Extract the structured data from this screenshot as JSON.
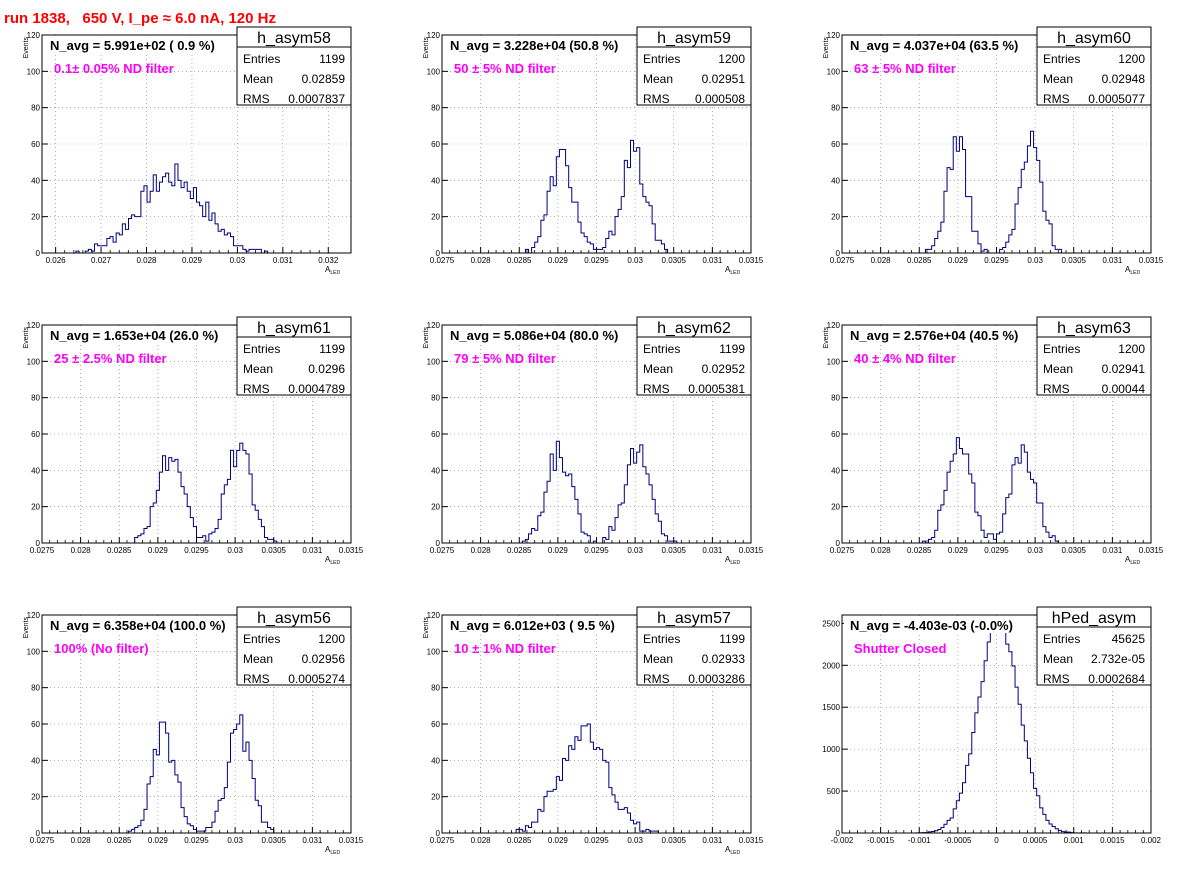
{
  "header": {
    "run_title": "run 1838,   650 V, I_pe ≈ 6.0 nA, 120 Hz"
  },
  "colors": {
    "hist_line": "#000080",
    "annotation": "#ff00ff",
    "title": "#ff0000",
    "grid": "#808080"
  },
  "chart_data": [
    {
      "type": "histogram",
      "name": "h_asym58",
      "navg": "N_avg = 5.991e+02 ( 0.9 %)",
      "filter": "0.1± 0.05% ND filter",
      "stats": {
        "entries": "1199",
        "mean": "0.02859",
        "rms": "0.0007837"
      },
      "xlabel": "A_LED",
      "ylabel": "Events",
      "xlim": [
        0.0257,
        0.0325
      ],
      "ylim": [
        0,
        120
      ],
      "xticks": [
        0.026,
        0.027,
        0.028,
        0.029,
        0.03,
        0.031,
        0.032
      ],
      "xtick_labels": [
        "0.026",
        "0.027",
        "0.028",
        "0.029",
        "0.03",
        "0.031",
        "0.032"
      ],
      "yticks": [
        0,
        20,
        40,
        60,
        80,
        100,
        120
      ],
      "ytick_labels": [
        "0",
        "20",
        "40",
        "60",
        "80",
        "100",
        "120"
      ],
      "peaks": [
        {
          "mu": 0.02855,
          "sigma": 0.00072,
          "amp": 42
        }
      ]
    },
    {
      "type": "histogram",
      "name": "h_asym59",
      "navg": "N_avg = 3.228e+04 (50.8 %)",
      "filter": "50 ± 5% ND filter",
      "stats": {
        "entries": "1200",
        "mean": "0.02951",
        "rms": "0.000508"
      },
      "xlabel": "A_LED",
      "ylabel": "Events",
      "xlim": [
        0.0275,
        0.0315
      ],
      "ylim": [
        0,
        120
      ],
      "xticks": [
        0.0275,
        0.028,
        0.0285,
        0.029,
        0.0295,
        0.03,
        0.0305,
        0.031,
        0.0315
      ],
      "xtick_labels": [
        "0.0275",
        "0.028",
        "0.0285",
        "0.029",
        "0.0295",
        "0.03",
        "0.0305",
        "0.031",
        "0.0315"
      ],
      "yticks": [
        0,
        20,
        40,
        60,
        80,
        100,
        120
      ],
      "ytick_labels": [
        "0",
        "20",
        "40",
        "60",
        "80",
        "100",
        "120"
      ],
      "peaks": [
        {
          "mu": 0.02905,
          "sigma": 0.00016,
          "amp": 52
        },
        {
          "mu": 0.02998,
          "sigma": 0.00016,
          "amp": 54
        }
      ]
    },
    {
      "type": "histogram",
      "name": "h_asym60",
      "navg": "N_avg = 4.037e+04 (63.5 %)",
      "filter": "63 ± 5% ND filter",
      "stats": {
        "entries": "1200",
        "mean": "0.02948",
        "rms": "0.0005077"
      },
      "xlabel": "A_LED",
      "ylabel": "Events",
      "xlim": [
        0.0275,
        0.0315
      ],
      "ylim": [
        0,
        120
      ],
      "xticks": [
        0.0275,
        0.028,
        0.0285,
        0.029,
        0.0295,
        0.03,
        0.0305,
        0.031,
        0.0315
      ],
      "xtick_labels": [
        "0.0275",
        "0.028",
        "0.0285",
        "0.029",
        "0.0295",
        "0.03",
        "0.0305",
        "0.031",
        "0.0315"
      ],
      "yticks": [
        0,
        20,
        40,
        60,
        80,
        100,
        120
      ],
      "ytick_labels": [
        "0",
        "20",
        "40",
        "60",
        "80",
        "100",
        "120"
      ],
      "peaks": [
        {
          "mu": 0.02899,
          "sigma": 0.00013,
          "amp": 62
        },
        {
          "mu": 0.02995,
          "sigma": 0.00014,
          "amp": 60
        }
      ]
    },
    {
      "type": "histogram",
      "name": "h_asym61",
      "navg": "N_avg = 1.653e+04 (26.0 %)",
      "filter": "25 ± 2.5% ND filter",
      "stats": {
        "entries": "1199",
        "mean": "0.0296",
        "rms": "0.0004789"
      },
      "xlabel": "A_LED",
      "ylabel": "Events",
      "xlim": [
        0.0275,
        0.0315
      ],
      "ylim": [
        0,
        120
      ],
      "xticks": [
        0.0275,
        0.028,
        0.0285,
        0.029,
        0.0295,
        0.03,
        0.0305,
        0.031,
        0.0315
      ],
      "xtick_labels": [
        "0.0275",
        "0.028",
        "0.0285",
        "0.029",
        "0.0295",
        "0.03",
        "0.0305",
        "0.031",
        "0.0315"
      ],
      "yticks": [
        0,
        20,
        40,
        60,
        80,
        100,
        120
      ],
      "ytick_labels": [
        "0",
        "20",
        "40",
        "60",
        "80",
        "100",
        "120"
      ],
      "peaks": [
        {
          "mu": 0.02915,
          "sigma": 0.00017,
          "amp": 46
        },
        {
          "mu": 0.03005,
          "sigma": 0.00016,
          "amp": 52
        }
      ]
    },
    {
      "type": "histogram",
      "name": "h_asym62",
      "navg": "N_avg = 5.086e+04 (80.0 %)",
      "filter": "79 ± 5% ND filter",
      "stats": {
        "entries": "1199",
        "mean": "0.02952",
        "rms": "0.0005381"
      },
      "xlabel": "A_LED",
      "ylabel": "Events",
      "xlim": [
        0.0275,
        0.0315
      ],
      "ylim": [
        0,
        120
      ],
      "xticks": [
        0.0275,
        0.028,
        0.0285,
        0.029,
        0.0295,
        0.03,
        0.0305,
        0.031,
        0.0315
      ],
      "xtick_labels": [
        "0.0275",
        "0.028",
        "0.0285",
        "0.029",
        "0.0295",
        "0.03",
        "0.0305",
        "0.031",
        "0.0315"
      ],
      "yticks": [
        0,
        20,
        40,
        60,
        80,
        100,
        120
      ],
      "ytick_labels": [
        "0",
        "20",
        "40",
        "60",
        "80",
        "100",
        "120"
      ],
      "peaks": [
        {
          "mu": 0.02902,
          "sigma": 0.00016,
          "amp": 50
        },
        {
          "mu": 0.03002,
          "sigma": 0.00017,
          "amp": 50
        }
      ]
    },
    {
      "type": "histogram",
      "name": "h_asym63",
      "navg": "N_avg = 2.576e+04 (40.5 %)",
      "filter": "40 ± 4% ND filter",
      "stats": {
        "entries": "1200",
        "mean": "0.02941",
        "rms": "0.00044"
      },
      "xlabel": "A_LED",
      "ylabel": "Events",
      "xlim": [
        0.0275,
        0.0315
      ],
      "ylim": [
        0,
        120
      ],
      "xticks": [
        0.0275,
        0.028,
        0.0285,
        0.029,
        0.0295,
        0.03,
        0.0305,
        0.031,
        0.0315
      ],
      "xtick_labels": [
        "0.0275",
        "0.028",
        "0.0285",
        "0.029",
        "0.0295",
        "0.03",
        "0.0305",
        "0.031",
        "0.0315"
      ],
      "yticks": [
        0,
        20,
        40,
        60,
        80,
        100,
        120
      ],
      "ytick_labels": [
        "0",
        "20",
        "40",
        "60",
        "80",
        "100",
        "120"
      ],
      "peaks": [
        {
          "mu": 0.02902,
          "sigma": 0.00016,
          "amp": 52
        },
        {
          "mu": 0.02985,
          "sigma": 0.00016,
          "amp": 50
        }
      ]
    },
    {
      "type": "histogram",
      "name": "h_asym56",
      "navg": "N_avg = 6.358e+04 (100.0 %)",
      "filter": "100% (No filter)",
      "stats": {
        "entries": "1200",
        "mean": "0.02956",
        "rms": "0.0005274"
      },
      "xlabel": "A_LED",
      "ylabel": "Events",
      "xlim": [
        0.0275,
        0.0315
      ],
      "ylim": [
        0,
        120
      ],
      "xticks": [
        0.0275,
        0.028,
        0.0285,
        0.029,
        0.0295,
        0.03,
        0.0305,
        0.031,
        0.0315
      ],
      "xtick_labels": [
        "0.0275",
        "0.028",
        "0.0285",
        "0.029",
        "0.0295",
        "0.03",
        "0.0305",
        "0.031",
        "0.0315"
      ],
      "yticks": [
        0,
        20,
        40,
        60,
        80,
        100,
        120
      ],
      "ytick_labels": [
        "0",
        "20",
        "40",
        "60",
        "80",
        "100",
        "120"
      ],
      "peaks": [
        {
          "mu": 0.02908,
          "sigma": 0.00015,
          "amp": 54
        },
        {
          "mu": 0.03005,
          "sigma": 0.00015,
          "amp": 58
        }
      ]
    },
    {
      "type": "histogram",
      "name": "h_asym57",
      "navg": "N_avg = 6.012e+03 ( 9.5 %)",
      "filter": "10 ± 1% ND filter",
      "stats": {
        "entries": "1199",
        "mean": "0.02933",
        "rms": "0.0003286"
      },
      "xlabel": "A_LED",
      "ylabel": "Events",
      "xlim": [
        0.0275,
        0.0315
      ],
      "ylim": [
        0,
        120
      ],
      "xticks": [
        0.0275,
        0.028,
        0.0285,
        0.029,
        0.0295,
        0.03,
        0.0305,
        0.031,
        0.0315
      ],
      "xtick_labels": [
        "0.0275",
        "0.028",
        "0.0285",
        "0.029",
        "0.0295",
        "0.03",
        "0.0305",
        "0.031",
        "0.0315"
      ],
      "yticks": [
        0,
        20,
        40,
        60,
        80,
        100,
        120
      ],
      "ytick_labels": [
        "0",
        "20",
        "40",
        "60",
        "80",
        "100",
        "120"
      ],
      "peaks": [
        {
          "mu": 0.02933,
          "sigma": 0.00031,
          "amp": 55
        }
      ]
    },
    {
      "type": "histogram",
      "name": "hPed_asym",
      "navg": "N_avg = -4.403e-03 (-0.0%)",
      "filter": "Shutter Closed",
      "stats": {
        "entries": "45625",
        "mean": "2.732e-05",
        "rms": "0.0002684"
      },
      "xlabel": "",
      "ylabel": "",
      "xlim": [
        -0.002,
        0.002
      ],
      "ylim": [
        0,
        2600
      ],
      "xticks": [
        -0.002,
        -0.0015,
        -0.001,
        -0.0005,
        0,
        0.0005,
        0.001,
        0.0015,
        0.002
      ],
      "xtick_labels": [
        "-0.002",
        "-0.0015",
        "-0.001",
        "-0.0005",
        "0",
        "0.0005",
        "0.001",
        "0.0015",
        "0.002"
      ],
      "yticks": [
        0,
        500,
        1000,
        1500,
        2000,
        2500
      ],
      "ytick_labels": [
        "0",
        "500",
        "1000",
        "1500",
        "2000",
        "2500"
      ],
      "peaks": [
        {
          "mu": 3e-05,
          "sigma": 0.00027,
          "amp": 2500
        }
      ]
    }
  ]
}
